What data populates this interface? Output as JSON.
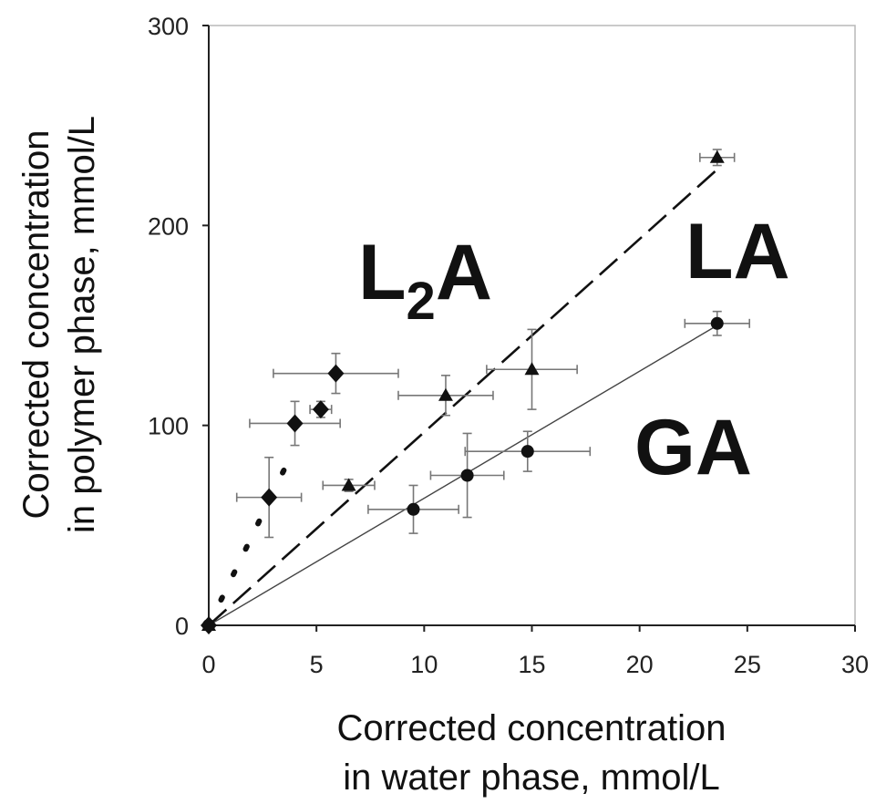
{
  "chart_data": {
    "type": "scatter",
    "title": "",
    "xlabel_lines": [
      "Corrected concentration",
      "in water phase, mmol/L"
    ],
    "ylabel_lines": [
      "Corrected concentration",
      "in polymer phase, mmol/L"
    ],
    "xlim": [
      0,
      30
    ],
    "ylim": [
      0,
      300
    ],
    "x_ticks": [
      0,
      5,
      10,
      15,
      20,
      25,
      30
    ],
    "y_ticks": [
      0,
      100,
      200,
      300
    ],
    "grid": false,
    "legend": "none",
    "series": [
      {
        "label_main": "L",
        "label_sub": "2",
        "label_tail": "A",
        "marker": "diamond",
        "fit_line": "dotted",
        "points": [
          {
            "x": 0,
            "y": 0,
            "xerr": 0,
            "yerr": 0
          },
          {
            "x": 2.8,
            "y": 64,
            "xerr": 1.5,
            "yerr": 20
          },
          {
            "x": 4.0,
            "y": 101,
            "xerr": 2.1,
            "yerr": 11
          },
          {
            "x": 5.2,
            "y": 108,
            "xerr": 0.5,
            "yerr": 4
          },
          {
            "x": 5.9,
            "y": 126,
            "xerr": 2.9,
            "yerr": 10
          }
        ],
        "fit": {
          "x": [
            0,
            4.0
          ],
          "y": [
            0,
            89
          ]
        }
      },
      {
        "label_main": "LA",
        "marker": "triangle",
        "fit_line": "dashed",
        "points": [
          {
            "x": 0,
            "y": 0,
            "xerr": 0,
            "yerr": 0
          },
          {
            "x": 6.5,
            "y": 70,
            "xerr": 1.2,
            "yerr": 3
          },
          {
            "x": 11.0,
            "y": 115,
            "xerr": 2.2,
            "yerr": 10
          },
          {
            "x": 15.0,
            "y": 128,
            "xerr": 2.1,
            "yerr": 20
          },
          {
            "x": 23.6,
            "y": 234,
            "xerr": 0.8,
            "yerr": 4
          }
        ],
        "fit": {
          "x": [
            0,
            23.6
          ],
          "y": [
            0,
            228
          ]
        }
      },
      {
        "label_main": "GA",
        "marker": "circle",
        "fit_line": "solid-thin",
        "points": [
          {
            "x": 0,
            "y": 0,
            "xerr": 0,
            "yerr": 0
          },
          {
            "x": 9.5,
            "y": 58,
            "xerr": 2.1,
            "yerr": 12
          },
          {
            "x": 12.0,
            "y": 75,
            "xerr": 1.7,
            "yerr": 21
          },
          {
            "x": 14.8,
            "y": 87,
            "xerr": 2.9,
            "yerr": 10
          },
          {
            "x": 23.6,
            "y": 151,
            "xerr": 1.5,
            "yerr": 6
          }
        ],
        "fit": {
          "x": [
            0,
            23.6
          ],
          "y": [
            0,
            150
          ]
        }
      }
    ]
  }
}
